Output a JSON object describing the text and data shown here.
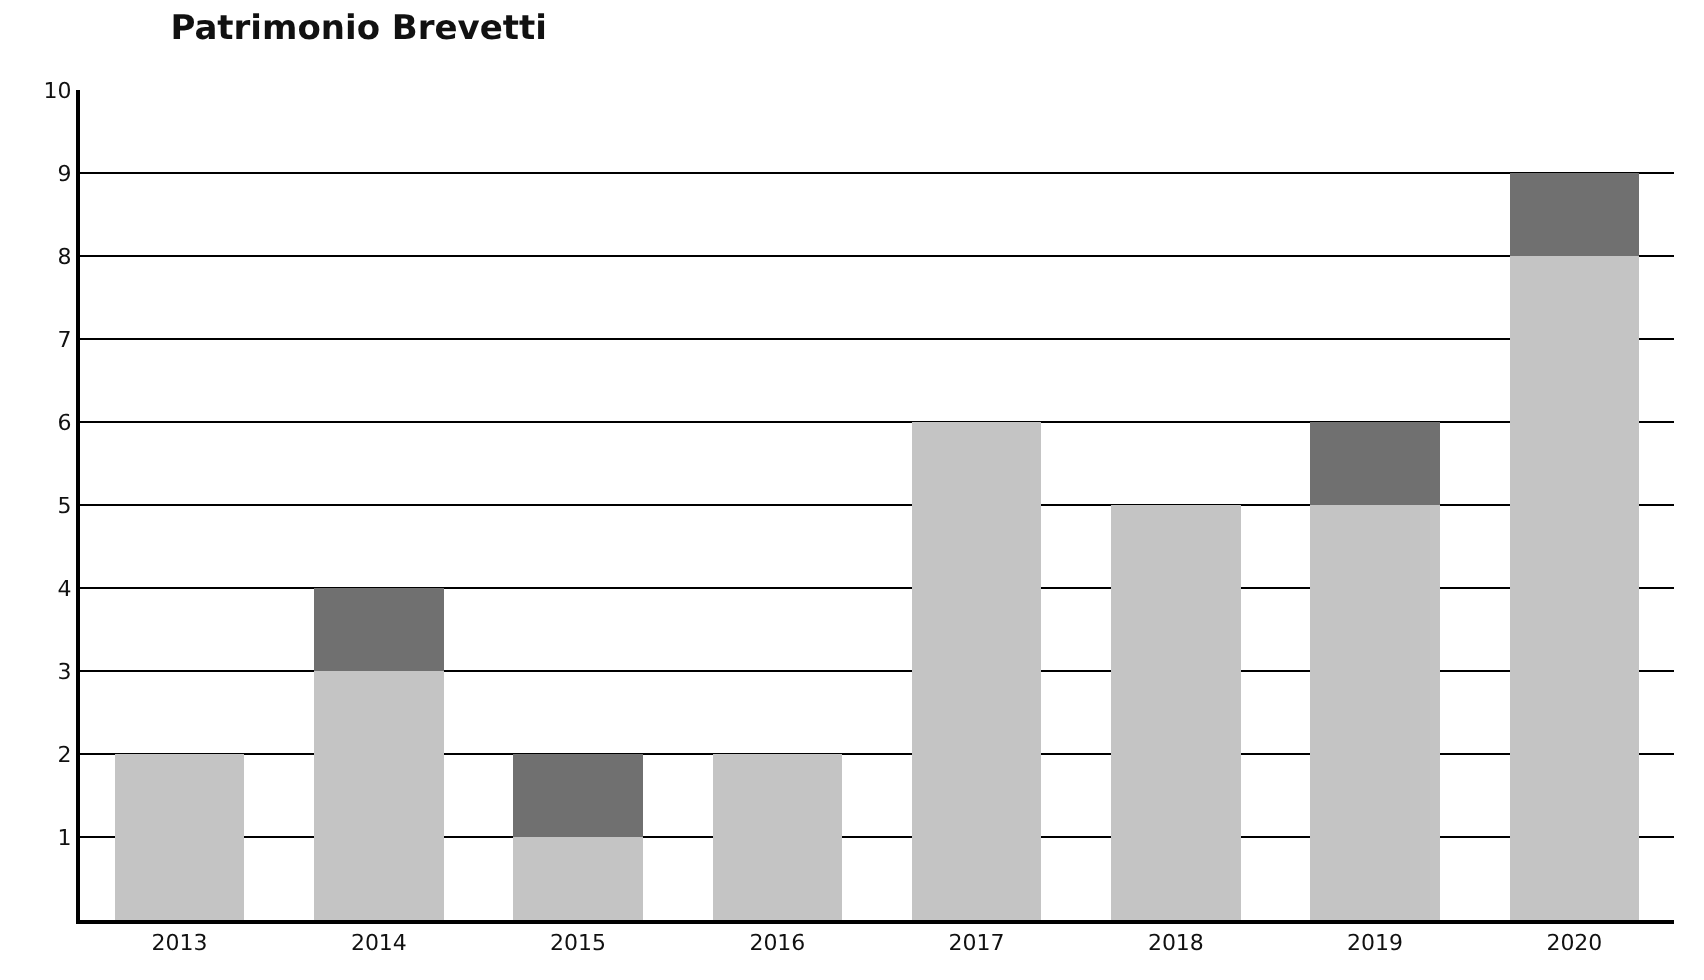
{
  "chart_data": {
    "type": "bar",
    "title": "Patrimonio Brevetti",
    "stacked": true,
    "categories": [
      "2013",
      "2014",
      "2015",
      "2016",
      "2017",
      "2018",
      "2019",
      "2020"
    ],
    "series": [
      {
        "color": "#c4c4c4",
        "values": [
          2,
          3,
          1,
          2,
          6,
          5,
          5,
          8
        ]
      },
      {
        "color": "#707070",
        "values": [
          0,
          1,
          1,
          0,
          0,
          0,
          1,
          1
        ]
      }
    ],
    "ylim": [
      0,
      10
    ],
    "yticks": [
      1,
      2,
      3,
      4,
      5,
      6,
      7,
      8,
      9,
      10
    ],
    "grid": "y"
  }
}
